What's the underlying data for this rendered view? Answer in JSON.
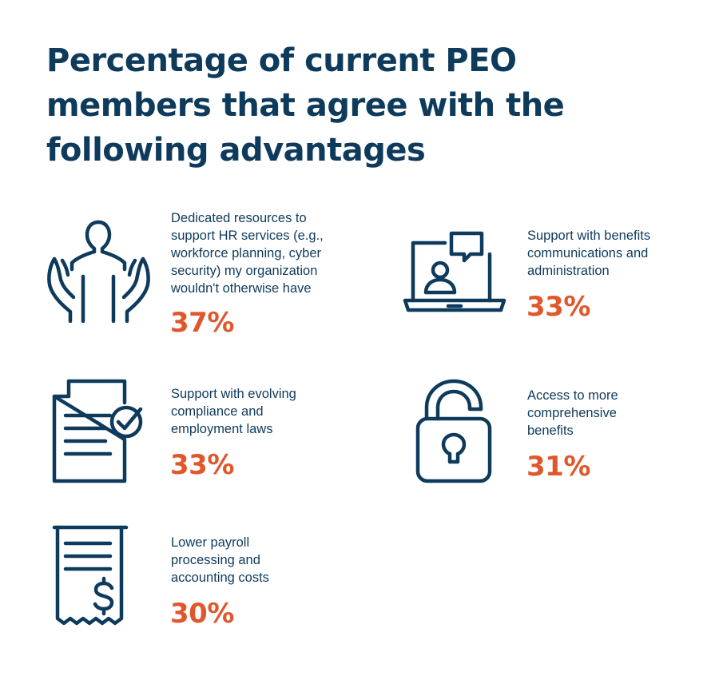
{
  "title": "Percentage of current PEO members that agree with the following advantages",
  "accent_color": "#e0572b",
  "text_color": "#0e3a5c",
  "advantages": [
    {
      "icon": "hands-person-icon",
      "label": "Dedicated resources to\nsupport HR services (e.g.,\nworkforce planning, cyber\nsecurity) my organization\nwouldn't otherwise have",
      "percent": "37%"
    },
    {
      "icon": "laptop-chat-icon",
      "label": "Support with benefits\ncommunications and\nadministration",
      "percent": "33%"
    },
    {
      "icon": "document-check-icon",
      "label": "Support with evolving\ncompliance and\nemployment laws",
      "percent": "33%"
    },
    {
      "icon": "padlock-icon",
      "label": "Access to more\ncomprehensive\nbenefits",
      "percent": "31%"
    },
    {
      "icon": "receipt-dollar-icon",
      "label": "Lower payroll\nprocessing and\naccounting costs",
      "percent": "30%"
    }
  ]
}
